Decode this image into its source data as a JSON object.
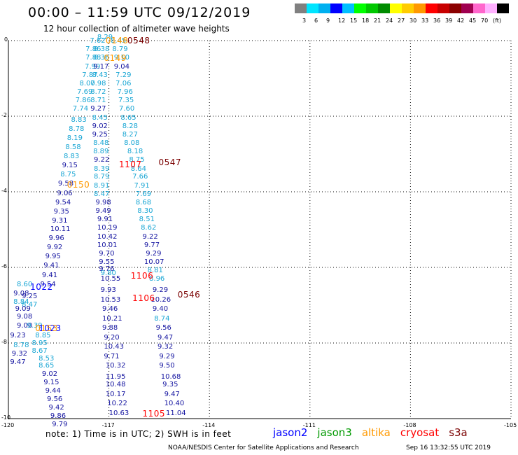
{
  "title": "00:00 – 11:59 UTC 09/12/2019",
  "subtitle": "12 hour collection of altimeter wave heights",
  "legend": {
    "colors": [
      "#808080",
      "#00e5ff",
      "#00b0f0",
      "#0000ff",
      "#00bfff",
      "#00ff00",
      "#00c800",
      "#008c00",
      "#ffff00",
      "#ffcc00",
      "#ff9900",
      "#ff0000",
      "#c80000",
      "#8b0000",
      "#a00050",
      "#ff66cc",
      "#ffb0ff",
      "#000000"
    ],
    "labels": [
      "3",
      "6",
      "9",
      "12",
      "15",
      "18",
      "21",
      "24",
      "27",
      "30",
      "33",
      "36",
      "39",
      "42",
      "45",
      "70",
      "(ft)"
    ]
  },
  "map": {
    "lon_range": [
      -120,
      -105
    ],
    "lat_range": [
      -10,
      0
    ],
    "x_ticks": [
      "-120",
      "-117",
      "-114",
      "-111",
      "-108",
      "-105"
    ],
    "y_ticks": [
      "0",
      "-2",
      "-4",
      "-6",
      "-8",
      "-10"
    ]
  },
  "colors": {
    "light": "#19a6d4",
    "dark": "#1414a0",
    "jason2": "#0000ff",
    "jason3": "#009900",
    "altika": "#ff9900",
    "cryosat": "#ff0000",
    "s3a": "#7a0000"
  },
  "tracks": [
    {
      "name": "track-a",
      "points": [
        {
          "lon": -117.57,
          "lat": 0.0,
          "v": "7.62",
          "c": "light"
        },
        {
          "lon": -117.35,
          "lat": 0.1,
          "v": "8.29",
          "c": "light"
        },
        {
          "lon": -117.7,
          "lat": -0.22,
          "v": "7.86",
          "c": "light"
        },
        {
          "lon": -117.45,
          "lat": -0.22,
          "v": "8.38",
          "c": "light"
        },
        {
          "lon": -117.7,
          "lat": -0.45,
          "v": "7.88",
          "c": "light"
        },
        {
          "lon": -117.45,
          "lat": -0.45,
          "v": "8.36",
          "c": "light"
        },
        {
          "lon": -117.72,
          "lat": -0.68,
          "v": "7.99",
          "c": "light"
        },
        {
          "lon": -117.47,
          "lat": -0.68,
          "v": "9.17",
          "c": "dark"
        },
        {
          "lon": -117.8,
          "lat": -0.9,
          "v": "7.87",
          "c": "light"
        },
        {
          "lon": -117.5,
          "lat": -0.9,
          "v": "8.43",
          "c": "light"
        },
        {
          "lon": -117.88,
          "lat": -1.13,
          "v": "8.00",
          "c": "light"
        },
        {
          "lon": -117.55,
          "lat": -1.13,
          "v": "7.98",
          "c": "light"
        },
        {
          "lon": -117.95,
          "lat": -1.35,
          "v": "7.69",
          "c": "light"
        },
        {
          "lon": -117.55,
          "lat": -1.35,
          "v": "8.72",
          "c": "light"
        },
        {
          "lon": -118.0,
          "lat": -1.58,
          "v": "7.86",
          "c": "light"
        },
        {
          "lon": -117.55,
          "lat": -1.58,
          "v": "8.71",
          "c": "light"
        },
        {
          "lon": -118.08,
          "lat": -1.8,
          "v": "7.74",
          "c": "light"
        },
        {
          "lon": -117.55,
          "lat": -1.8,
          "v": "9.27",
          "c": "dark"
        },
        {
          "lon": -117.5,
          "lat": -2.03,
          "v": "8.45",
          "c": "light"
        },
        {
          "lon": -118.13,
          "lat": -2.09,
          "v": "8.83",
          "c": "light"
        },
        {
          "lon": -117.5,
          "lat": -2.25,
          "v": "9.02",
          "c": "dark"
        },
        {
          "lon": -118.2,
          "lat": -2.33,
          "v": "8.78",
          "c": "light"
        },
        {
          "lon": -117.5,
          "lat": -2.48,
          "v": "9.25",
          "c": "dark"
        },
        {
          "lon": -118.25,
          "lat": -2.57,
          "v": "8.19",
          "c": "light"
        },
        {
          "lon": -117.47,
          "lat": -2.7,
          "v": "8.48",
          "c": "light"
        },
        {
          "lon": -118.3,
          "lat": -2.82,
          "v": "8.58",
          "c": "light"
        },
        {
          "lon": -117.47,
          "lat": -2.93,
          "v": "8.89",
          "c": "light"
        },
        {
          "lon": -118.35,
          "lat": -3.06,
          "v": "8.83",
          "c": "light"
        },
        {
          "lon": -117.45,
          "lat": -3.15,
          "v": "9.22",
          "c": "dark"
        },
        {
          "lon": -118.4,
          "lat": -3.3,
          "v": "9.15",
          "c": "dark"
        },
        {
          "lon": -117.45,
          "lat": -3.38,
          "v": "8.39",
          "c": "light"
        },
        {
          "lon": -118.45,
          "lat": -3.54,
          "v": "8.75",
          "c": "light"
        },
        {
          "lon": -117.45,
          "lat": -3.6,
          "v": "8.79",
          "c": "light"
        },
        {
          "lon": -118.52,
          "lat": -3.78,
          "v": "9.58",
          "c": "dark"
        },
        {
          "lon": -117.45,
          "lat": -3.83,
          "v": "8.91",
          "c": "light"
        },
        {
          "lon": -117.45,
          "lat": -4.05,
          "v": "8.47",
          "c": "light"
        },
        {
          "lon": -118.55,
          "lat": -4.03,
          "v": "9.06",
          "c": "dark"
        },
        {
          "lon": -118.6,
          "lat": -4.27,
          "v": "9.54",
          "c": "dark"
        },
        {
          "lon": -117.4,
          "lat": -4.28,
          "v": "9.98",
          "c": "dark"
        },
        {
          "lon": -118.65,
          "lat": -4.51,
          "v": "9.35",
          "c": "dark"
        },
        {
          "lon": -117.4,
          "lat": -4.5,
          "v": "9.49",
          "c": "dark"
        },
        {
          "lon": -118.7,
          "lat": -4.75,
          "v": "9.31",
          "c": "dark"
        },
        {
          "lon": -117.35,
          "lat": -4.73,
          "v": "9.91",
          "c": "dark"
        },
        {
          "lon": -118.75,
          "lat": -4.99,
          "v": "10.11",
          "c": "dark"
        },
        {
          "lon": -117.35,
          "lat": -4.95,
          "v": "10.19",
          "c": "dark"
        },
        {
          "lon": -118.8,
          "lat": -5.23,
          "v": "9.96",
          "c": "dark"
        },
        {
          "lon": -117.35,
          "lat": -5.18,
          "v": "10.42",
          "c": "dark"
        },
        {
          "lon": -118.85,
          "lat": -5.47,
          "v": "9.92",
          "c": "dark"
        },
        {
          "lon": -117.35,
          "lat": -5.4,
          "v": "10.01",
          "c": "dark"
        },
        {
          "lon": -118.9,
          "lat": -5.71,
          "v": "9.95",
          "c": "dark"
        },
        {
          "lon": -117.3,
          "lat": -5.63,
          "v": "9.70",
          "c": "dark"
        },
        {
          "lon": -118.95,
          "lat": -5.95,
          "v": "9.41",
          "c": "dark"
        },
        {
          "lon": -117.3,
          "lat": -5.85,
          "v": "9.55",
          "c": "dark"
        },
        {
          "lon": -117.3,
          "lat": -6.03,
          "v": "9.76",
          "c": "dark"
        },
        {
          "lon": -117.25,
          "lat": -6.15,
          "v": "9.80",
          "c": "light"
        },
        {
          "lon": -119.0,
          "lat": -6.2,
          "v": "9.41",
          "c": "dark"
        },
        {
          "lon": -117.25,
          "lat": -6.3,
          "v": "10.55",
          "c": "dark"
        },
        {
          "lon": -119.05,
          "lat": -6.45,
          "v": "9.54",
          "c": "dark"
        },
        {
          "lon": -119.75,
          "lat": -6.45,
          "v": "8.60",
          "c": "light"
        },
        {
          "lon": -117.25,
          "lat": -6.6,
          "v": "9.93",
          "c": "dark"
        },
        {
          "lon": -119.85,
          "lat": -6.68,
          "v": "9.08",
          "c": "dark"
        },
        {
          "lon": -119.6,
          "lat": -6.75,
          "v": "9.25",
          "c": "dark"
        },
        {
          "lon": -117.25,
          "lat": -6.85,
          "v": "10.53",
          "c": "dark"
        },
        {
          "lon": -119.85,
          "lat": -6.9,
          "v": "8.84",
          "c": "light"
        },
        {
          "lon": -119.6,
          "lat": -6.98,
          "v": "8.47",
          "c": "light"
        },
        {
          "lon": -119.8,
          "lat": -7.1,
          "v": "9.09",
          "c": "dark"
        },
        {
          "lon": -117.2,
          "lat": -7.1,
          "v": "9.46",
          "c": "dark"
        },
        {
          "lon": -119.75,
          "lat": -7.3,
          "v": "9.08",
          "c": "dark"
        },
        {
          "lon": -117.2,
          "lat": -7.35,
          "v": "10.21",
          "c": "dark"
        },
        {
          "lon": -119.75,
          "lat": -7.53,
          "v": "9.00",
          "c": "dark"
        },
        {
          "lon": -119.45,
          "lat": -7.53,
          "v": "9.39",
          "c": "light"
        },
        {
          "lon": -117.2,
          "lat": -7.6,
          "v": "9.88",
          "c": "dark"
        },
        {
          "lon": -119.2,
          "lat": -7.8,
          "v": "8.85",
          "c": "light"
        },
        {
          "lon": -119.95,
          "lat": -7.8,
          "v": "9.23",
          "c": "dark"
        },
        {
          "lon": -117.15,
          "lat": -7.85,
          "v": "9.20",
          "c": "dark"
        },
        {
          "lon": -119.3,
          "lat": -8.0,
          "v": "8.95",
          "c": "light"
        },
        {
          "lon": -119.85,
          "lat": -8.05,
          "v": "8.78",
          "c": "light"
        },
        {
          "lon": -119.3,
          "lat": -8.2,
          "v": "8.67",
          "c": "light"
        },
        {
          "lon": -117.15,
          "lat": -8.1,
          "v": "10.43",
          "c": "dark"
        },
        {
          "lon": -119.9,
          "lat": -8.28,
          "v": "9.32",
          "c": "dark"
        },
        {
          "lon": -119.1,
          "lat": -8.4,
          "v": "8.53",
          "c": "light"
        },
        {
          "lon": -117.15,
          "lat": -8.35,
          "v": "9.71",
          "c": "dark"
        },
        {
          "lon": -119.95,
          "lat": -8.5,
          "v": "9.47",
          "c": "dark"
        },
        {
          "lon": -119.1,
          "lat": -8.6,
          "v": "8.65",
          "c": "light"
        },
        {
          "lon": -117.1,
          "lat": -8.6,
          "v": "10.32",
          "c": "dark"
        },
        {
          "lon": -119.0,
          "lat": -8.82,
          "v": "9.02",
          "c": "dark"
        },
        {
          "lon": -117.1,
          "lat": -8.88,
          "v": "11.95",
          "c": "dark"
        },
        {
          "lon": -118.95,
          "lat": -9.04,
          "v": "9.15",
          "c": "dark"
        },
        {
          "lon": -117.1,
          "lat": -9.1,
          "v": "10.48",
          "c": "dark"
        },
        {
          "lon": -118.9,
          "lat": -9.26,
          "v": "9.44",
          "c": "dark"
        },
        {
          "lon": -117.1,
          "lat": -9.35,
          "v": "10.17",
          "c": "dark"
        },
        {
          "lon": -118.85,
          "lat": -9.48,
          "v": "9.56",
          "c": "dark"
        },
        {
          "lon": -117.05,
          "lat": -9.6,
          "v": "10.22",
          "c": "dark"
        },
        {
          "lon": -118.8,
          "lat": -9.7,
          "v": "9.42",
          "c": "dark"
        },
        {
          "lon": -118.75,
          "lat": -9.92,
          "v": "9.86",
          "c": "dark"
        },
        {
          "lon": -117.0,
          "lat": -9.85,
          "v": "10.63",
          "c": "dark"
        },
        {
          "lon": -118.7,
          "lat": -10.14,
          "v": "9.79",
          "c": "dark"
        }
      ]
    },
    {
      "name": "track-b",
      "points": [
        {
          "lon": -116.95,
          "lat": 0.0,
          "v": "8.45",
          "c": "light"
        },
        {
          "lon": -116.9,
          "lat": -0.22,
          "v": "8.79",
          "c": "light"
        },
        {
          "lon": -116.85,
          "lat": -0.45,
          "v": "9.10",
          "c": "light"
        },
        {
          "lon": -116.85,
          "lat": -0.68,
          "v": "9.04",
          "c": "dark"
        },
        {
          "lon": -116.8,
          "lat": -0.9,
          "v": "7.29",
          "c": "light"
        },
        {
          "lon": -116.8,
          "lat": -1.13,
          "v": "7.06",
          "c": "light"
        },
        {
          "lon": -116.75,
          "lat": -1.35,
          "v": "7.96",
          "c": "light"
        },
        {
          "lon": -116.72,
          "lat": -1.58,
          "v": "7.35",
          "c": "light"
        },
        {
          "lon": -116.7,
          "lat": -1.8,
          "v": "7.60",
          "c": "light"
        },
        {
          "lon": -116.65,
          "lat": -2.03,
          "v": "8.65",
          "c": "light"
        },
        {
          "lon": -116.6,
          "lat": -2.25,
          "v": "8.28",
          "c": "light"
        },
        {
          "lon": -116.6,
          "lat": -2.48,
          "v": "8.27",
          "c": "light"
        },
        {
          "lon": -116.55,
          "lat": -2.7,
          "v": "8.08",
          "c": "light"
        },
        {
          "lon": -116.45,
          "lat": -2.93,
          "v": "8.18",
          "c": "light"
        },
        {
          "lon": -116.4,
          "lat": -3.15,
          "v": "8.75",
          "c": "light"
        },
        {
          "lon": -116.35,
          "lat": -3.38,
          "v": "8.64",
          "c": "light"
        },
        {
          "lon": -116.3,
          "lat": -3.6,
          "v": "7.66",
          "c": "light"
        },
        {
          "lon": -116.25,
          "lat": -3.83,
          "v": "7.91",
          "c": "light"
        },
        {
          "lon": -116.2,
          "lat": -4.05,
          "v": "7.69",
          "c": "light"
        },
        {
          "lon": -116.2,
          "lat": -4.28,
          "v": "8.68",
          "c": "light"
        },
        {
          "lon": -116.15,
          "lat": -4.5,
          "v": "8.30",
          "c": "light"
        },
        {
          "lon": -116.1,
          "lat": -4.73,
          "v": "8.51",
          "c": "light"
        },
        {
          "lon": -116.05,
          "lat": -4.95,
          "v": "8.62",
          "c": "light"
        },
        {
          "lon": -116.0,
          "lat": -5.18,
          "v": "9.22",
          "c": "dark"
        },
        {
          "lon": -115.95,
          "lat": -5.4,
          "v": "9.77",
          "c": "dark"
        },
        {
          "lon": -115.9,
          "lat": -5.63,
          "v": "9.29",
          "c": "dark"
        },
        {
          "lon": -115.95,
          "lat": -5.85,
          "v": "10.07",
          "c": "dark"
        },
        {
          "lon": -115.85,
          "lat": -6.08,
          "v": "8.81",
          "c": "light"
        },
        {
          "lon": -115.8,
          "lat": -6.3,
          "v": "8.96",
          "c": "light"
        },
        {
          "lon": -115.7,
          "lat": -6.6,
          "v": "9.29",
          "c": "dark"
        },
        {
          "lon": -115.75,
          "lat": -6.85,
          "v": "10.26",
          "c": "dark"
        },
        {
          "lon": -115.7,
          "lat": -7.1,
          "v": "9.40",
          "c": "dark"
        },
        {
          "lon": -115.65,
          "lat": -7.35,
          "v": "8.74",
          "c": "light"
        },
        {
          "lon": -115.6,
          "lat": -7.6,
          "v": "9.56",
          "c": "dark"
        },
        {
          "lon": -115.55,
          "lat": -7.85,
          "v": "9.47",
          "c": "dark"
        },
        {
          "lon": -115.55,
          "lat": -8.1,
          "v": "9.32",
          "c": "dark"
        },
        {
          "lon": -115.5,
          "lat": -8.35,
          "v": "9.29",
          "c": "dark"
        },
        {
          "lon": -115.5,
          "lat": -8.6,
          "v": "9.50",
          "c": "dark"
        },
        {
          "lon": -115.45,
          "lat": -8.88,
          "v": "10.68",
          "c": "dark"
        },
        {
          "lon": -115.4,
          "lat": -9.1,
          "v": "9.35",
          "c": "dark"
        },
        {
          "lon": -115.35,
          "lat": -9.35,
          "v": "9.47",
          "c": "dark"
        },
        {
          "lon": -115.35,
          "lat": -9.6,
          "v": "10.40",
          "c": "dark"
        },
        {
          "lon": -115.3,
          "lat": -9.85,
          "v": "11.04",
          "c": "dark"
        }
      ]
    }
  ],
  "times": [
    {
      "lon": -117.1,
      "lat": 0.02,
      "t": "0148",
      "sat": "altika"
    },
    {
      "lon": -116.45,
      "lat": 0.02,
      "t": "0548",
      "sat": "s3a"
    },
    {
      "lon": -117.15,
      "lat": -0.45,
      "t": "0149",
      "sat": "altika"
    },
    {
      "lon": -115.52,
      "lat": -3.2,
      "t": "0547",
      "sat": "s3a"
    },
    {
      "lon": -116.7,
      "lat": -3.25,
      "t": "1107",
      "sat": "cryosat"
    },
    {
      "lon": -118.25,
      "lat": -3.8,
      "t": "0150",
      "sat": "altika"
    },
    {
      "lon": -116.35,
      "lat": -6.2,
      "t": "1106",
      "sat": "cryosat"
    },
    {
      "lon": -116.3,
      "lat": -6.8,
      "t": "1106",
      "sat": "cryosat"
    },
    {
      "lon": -114.95,
      "lat": -6.7,
      "t": "0546",
      "sat": "s3a"
    },
    {
      "lon": -119.35,
      "lat": -6.5,
      "t": "1022",
      "sat": "jason2"
    },
    {
      "lon": -119.1,
      "lat": -7.6,
      "t": "1023",
      "sat": "jason2"
    },
    {
      "lon": -119.2,
      "lat": -7.6,
      "t": "0153",
      "sat": "altika"
    },
    {
      "lon": -116.0,
      "lat": -9.85,
      "t": "1105",
      "sat": "cryosat"
    }
  ],
  "note": "note:  1) Time is in UTC;  2) SWH is in feet",
  "satellites": [
    {
      "label": "jason2",
      "key": "jason2"
    },
    {
      "label": "jason3",
      "key": "jason3"
    },
    {
      "label": "altika",
      "key": "altika"
    },
    {
      "label": "cryosat",
      "key": "cryosat"
    },
    {
      "label": "s3a",
      "key": "s3a"
    }
  ],
  "credit": "NOAA/NESDIS Center for Satellite Applications and Research",
  "stamp": "Sep 16 13:32:55 UTC 2019"
}
